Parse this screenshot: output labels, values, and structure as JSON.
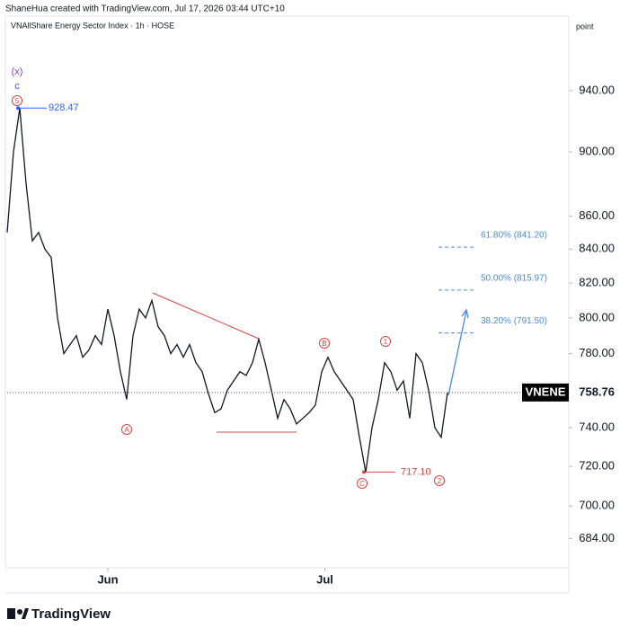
{
  "header": "ShaneHua created with TradingView.com, Jul 17, 2026 03:44 UTC+10",
  "footer": "TradingView",
  "chart_data": {
    "type": "line",
    "title": "VNAllShare Energy Sector Index · 1h · HOSE",
    "axis_header": "point",
    "log_scale": true,
    "x": [
      0,
      1,
      2,
      3,
      4,
      5,
      6,
      7,
      8,
      9,
      10,
      11,
      12,
      13,
      14,
      15,
      16,
      17,
      18,
      19,
      20,
      21,
      22,
      23,
      24,
      25,
      26,
      27,
      28,
      29,
      30,
      31,
      32,
      33,
      34,
      35,
      36,
      37,
      38,
      39,
      40,
      41,
      42,
      43,
      44,
      45,
      46,
      47,
      48,
      49,
      50,
      51,
      52,
      53,
      54,
      55,
      56,
      57,
      58,
      59,
      60,
      61,
      62,
      63,
      64,
      65,
      66,
      67,
      68,
      69,
      70
    ],
    "series": [
      {
        "name": "VNENE",
        "color": "#131722",
        "values": [
          850,
          900,
          928.47,
          880,
          845,
          850,
          840,
          835,
          800,
          780,
          785,
          790,
          778,
          782,
          790,
          785,
          805,
          790,
          770,
          755,
          790,
          805,
          800,
          810,
          795,
          790,
          780,
          785,
          778,
          785,
          775,
          770,
          758,
          748,
          750,
          760,
          765,
          770,
          768,
          775,
          788,
          775,
          760,
          745,
          755,
          750,
          742,
          745,
          748,
          752,
          770,
          778,
          770,
          765,
          760,
          755,
          735,
          717.1,
          740,
          755,
          775,
          770,
          760,
          765,
          745,
          780,
          775,
          760,
          740,
          735,
          758.76
        ],
        "last_label": "758.76"
      }
    ],
    "xlim": [
      0,
      89
    ],
    "xticks": [
      {
        "value": 16,
        "label": "Jun"
      },
      {
        "value": 50.5,
        "label": "Jul"
      }
    ],
    "ylim": [
      670,
      991
    ],
    "yticks": [
      {
        "value": 940,
        "label": "940.00"
      },
      {
        "value": 900,
        "label": "900.00"
      },
      {
        "value": 860,
        "label": "860.00"
      },
      {
        "value": 840,
        "label": "840.00"
      },
      {
        "value": 820,
        "label": "820.00"
      },
      {
        "value": 800,
        "label": "800.00"
      },
      {
        "value": 780,
        "label": "780.00"
      },
      {
        "value": 740,
        "label": "740.00"
      },
      {
        "value": 720,
        "label": "720.00"
      },
      {
        "value": 700,
        "label": "700.00"
      },
      {
        "value": 684,
        "label": "684.00"
      }
    ],
    "price_marks": [
      {
        "value": 928.47,
        "label": "928.47",
        "color": "#2962ff"
      },
      {
        "value": 717.1,
        "label": "717.10",
        "color": "#d0453f"
      }
    ],
    "fib_levels": [
      {
        "value": 841.2,
        "label": "61.80% (841.20)"
      },
      {
        "value": 815.97,
        "label": "50.00% (815.97)"
      },
      {
        "value": 791.5,
        "label": "38.20% (791.50)"
      }
    ],
    "wave_labels": [
      "(x)",
      "c",
      "5",
      "A",
      "B",
      "C",
      "1",
      "2"
    ]
  }
}
